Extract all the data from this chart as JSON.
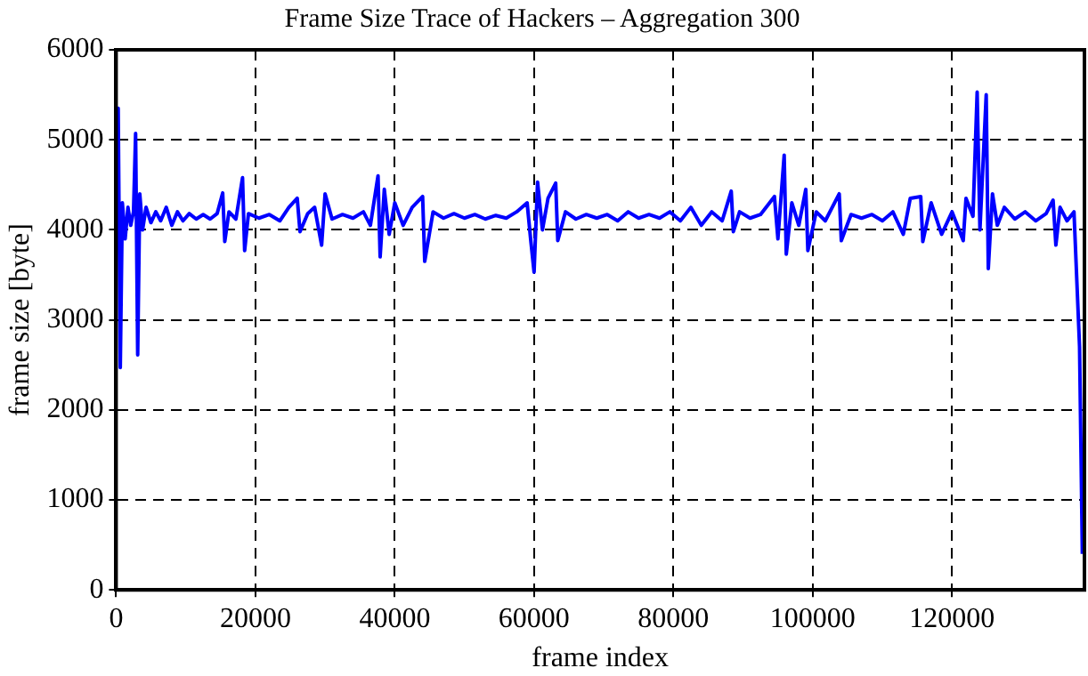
{
  "chart_data": {
    "type": "line",
    "title": "Frame Size Trace of Hackers – Aggregation 300",
    "xlabel": "frame index",
    "ylabel": "frame size [byte]",
    "xlim": [
      0,
      139000
    ],
    "xticks": [
      0,
      20000,
      40000,
      60000,
      80000,
      100000,
      120000
    ],
    "ylim": [
      0,
      6000
    ],
    "yticks": [
      0,
      1000,
      2000,
      3000,
      4000,
      5000,
      6000
    ],
    "grid": true,
    "marker": "none",
    "line_style": "solid",
    "legend": false,
    "series": [
      {
        "color": "#0000ff",
        "x": [
          0,
          300,
          600,
          900,
          1300,
          1700,
          2100,
          2500,
          2800,
          3100,
          3400,
          3800,
          4300,
          5000,
          5700,
          6400,
          7200,
          8000,
          8800,
          9600,
          10500,
          11500,
          12500,
          13500,
          14500,
          15300,
          15600,
          16200,
          17200,
          18150,
          18450,
          19000,
          20500,
          22000,
          23500,
          24800,
          26000,
          26400,
          27500,
          28500,
          29500,
          30000,
          31000,
          32500,
          34000,
          35500,
          36500,
          37600,
          37900,
          38500,
          39200,
          40000,
          41200,
          42500,
          44000,
          44300,
          45500,
          47000,
          48500,
          50000,
          51500,
          53000,
          54500,
          56000,
          57500,
          59000,
          59500,
          60000,
          60500,
          61200,
          62000,
          63100,
          63400,
          64500,
          66000,
          67500,
          69000,
          70500,
          72000,
          73500,
          75000,
          76500,
          78000,
          79500,
          81000,
          82500,
          84000,
          85500,
          87000,
          88300,
          88600,
          89500,
          91000,
          92500,
          94500,
          95000,
          95900,
          96200,
          97000,
          98000,
          99000,
          99300,
          100500,
          101800,
          103800,
          104100,
          105500,
          107000,
          108500,
          110000,
          111500,
          113000,
          114000,
          115500,
          115800,
          117000,
          118500,
          120000,
          121600,
          122000,
          123000,
          123600,
          124000,
          124900,
          125200,
          125800,
          126500,
          127500,
          129000,
          130500,
          132000,
          133500,
          134500,
          134900,
          135500,
          136500,
          137500,
          138300,
          138700
        ],
        "values": [
          4870,
          5350,
          2470,
          4300,
          3900,
          4250,
          4050,
          4200,
          5070,
          2610,
          4400,
          4000,
          4250,
          4080,
          4200,
          4100,
          4250,
          4050,
          4200,
          4100,
          4180,
          4120,
          4170,
          4120,
          4180,
          4410,
          3870,
          4200,
          4120,
          4580,
          3770,
          4180,
          4130,
          4170,
          4100,
          4250,
          4350,
          3980,
          4180,
          4250,
          3830,
          4400,
          4120,
          4170,
          4130,
          4200,
          4050,
          4600,
          3700,
          4450,
          3950,
          4300,
          4050,
          4250,
          4370,
          3650,
          4200,
          4130,
          4180,
          4130,
          4170,
          4120,
          4160,
          4130,
          4200,
          4300,
          3900,
          3530,
          4530,
          4000,
          4350,
          4520,
          3880,
          4200,
          4120,
          4170,
          4130,
          4170,
          4100,
          4200,
          4130,
          4170,
          4130,
          4200,
          4100,
          4250,
          4050,
          4200,
          4100,
          4430,
          3980,
          4200,
          4130,
          4170,
          4370,
          3900,
          4830,
          3730,
          4300,
          4050,
          4450,
          3770,
          4200,
          4100,
          4400,
          3880,
          4170,
          4130,
          4170,
          4100,
          4200,
          3950,
          4350,
          4370,
          3870,
          4300,
          3950,
          4200,
          3880,
          4350,
          4150,
          5530,
          4000,
          5500,
          3570,
          4400,
          4050,
          4250,
          4120,
          4200,
          4100,
          4180,
          4330,
          3830,
          4250,
          4100,
          4200,
          2700,
          400
        ]
      }
    ]
  }
}
